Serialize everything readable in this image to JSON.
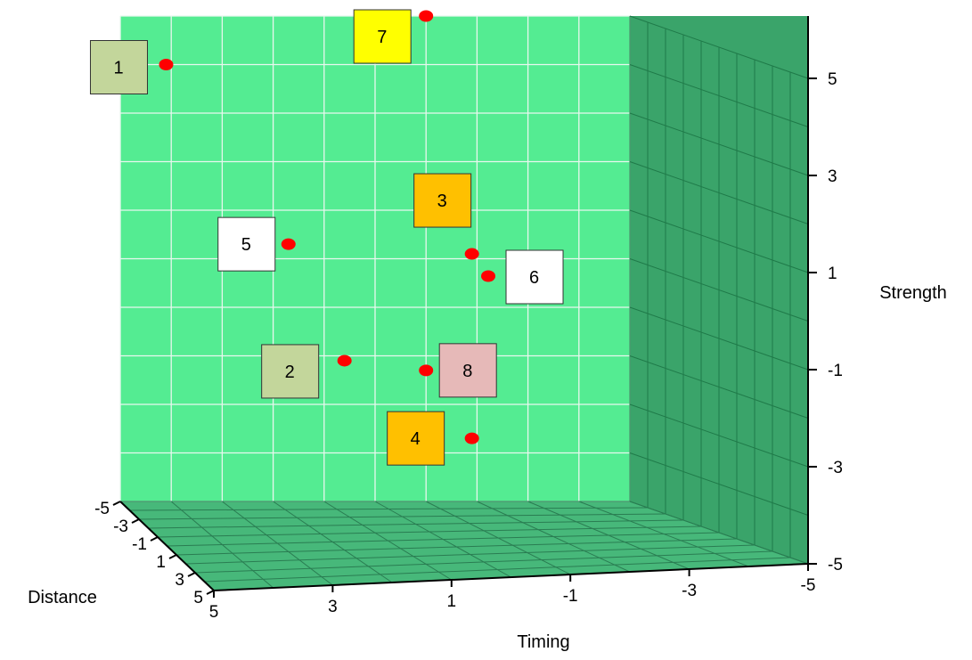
{
  "chart_data": {
    "type": "scatter",
    "projection": "3d",
    "xlabel": "Timing",
    "ylabel": "Distance",
    "zlabel": "Strength",
    "x_ticks": [
      "5",
      "3",
      "1",
      "-1",
      "-3",
      "-5"
    ],
    "y_ticks": [
      "-5",
      "-3",
      "-1",
      "1",
      "3",
      "5"
    ],
    "z_ticks": [
      "5",
      "3",
      "1",
      "-1",
      "-3",
      "-5"
    ],
    "xlim": [
      5,
      -5
    ],
    "ylim": [
      -5,
      5
    ],
    "zlim": [
      -5,
      5
    ],
    "grid": true,
    "colors": {
      "back_wall": "#54ec92",
      "side_wall": "#3aa46a",
      "floor": "#47b87a",
      "grid": "#e8f7ee",
      "point": "#ff0000"
    },
    "points": [
      {
        "label": "1",
        "x": 4.1,
        "y": -5,
        "z": 4.0,
        "label_color": "#c3d69b"
      },
      {
        "label": "2",
        "x": 0.6,
        "y": -5,
        "z": -2.1,
        "label_color": "#c3d69b"
      },
      {
        "label": "3",
        "x": -1.9,
        "y": -5,
        "z": 0.1,
        "label_color": "#ffc000"
      },
      {
        "label": "4",
        "x": -1.9,
        "y": -5,
        "z": -3.7,
        "label_color": "#ffc000"
      },
      {
        "label": "5",
        "x": 1.7,
        "y": -5,
        "z": 0.3,
        "label_color": "#ffffff"
      },
      {
        "label": "6",
        "x": -2.1,
        "y": -4.6,
        "z": -0.3,
        "label_color": "#ffffff"
      },
      {
        "label": "7",
        "x": -1.0,
        "y": -5,
        "z": 5.0,
        "label_color": "#ffff00"
      },
      {
        "label": "8",
        "x": -1.0,
        "y": -5,
        "z": -2.3,
        "label_color": "#e6b9b8"
      }
    ]
  }
}
